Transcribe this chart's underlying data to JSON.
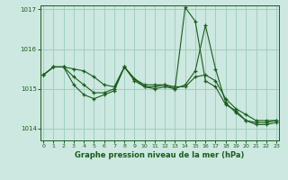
{
  "title": "Graphe pression niveau de la mer (hPa)",
  "bg_color": "#cce8e0",
  "line_color": "#1a5c1a",
  "grid_color": "#99ccbb",
  "ylim": [
    1013.7,
    1017.1
  ],
  "xlim": [
    -0.3,
    23.3
  ],
  "yticks": [
    1014,
    1015,
    1016,
    1017
  ],
  "xticks": [
    0,
    1,
    2,
    3,
    4,
    5,
    6,
    7,
    8,
    9,
    10,
    11,
    12,
    13,
    14,
    15,
    16,
    17,
    18,
    19,
    20,
    21,
    22,
    23
  ],
  "series": [
    [
      1015.35,
      1015.55,
      1015.55,
      1015.5,
      1015.45,
      1015.3,
      1015.1,
      1015.05,
      1015.55,
      1015.25,
      1015.1,
      1015.1,
      1015.1,
      1015.05,
      1015.05,
      1015.3,
      1015.35,
      1015.2,
      1014.75,
      1014.5,
      1014.35,
      1014.2,
      1014.2,
      1014.2
    ],
    [
      1015.35,
      1015.55,
      1015.55,
      1015.3,
      1015.1,
      1014.9,
      1014.9,
      1015.0,
      1015.55,
      1015.2,
      1015.05,
      1015.0,
      1015.05,
      1015.0,
      1017.05,
      1016.7,
      1015.2,
      1015.05,
      1014.6,
      1014.45,
      1014.2,
      1014.15,
      1014.15,
      1014.2
    ],
    [
      1015.35,
      1015.55,
      1015.55,
      1015.1,
      1014.85,
      1014.75,
      1014.85,
      1014.95,
      1015.55,
      1015.25,
      1015.05,
      1015.05,
      1015.1,
      1015.0,
      1015.1,
      1015.45,
      1016.6,
      1015.5,
      1014.65,
      1014.4,
      1014.2,
      1014.1,
      1014.1,
      1014.15
    ]
  ]
}
